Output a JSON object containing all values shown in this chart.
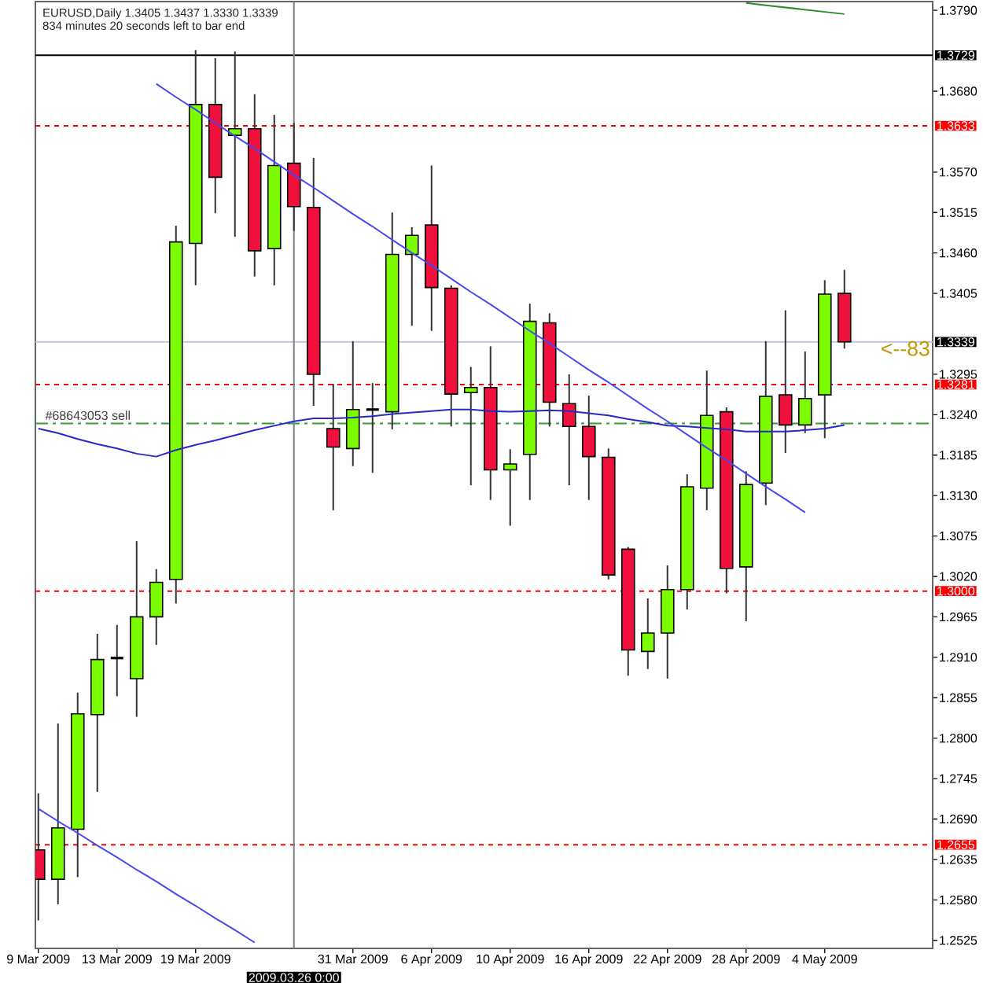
{
  "chart_data": {
    "type": "candlestick",
    "title": "EURUSD,Daily 1.3405 1.3437 1.3330 1.3339",
    "subtitle": "834 minutes 20 seconds left to bar end",
    "categories": [
      "9 Mar 2009",
      null,
      null,
      null,
      "13 Mar 2009",
      null,
      null,
      null,
      "19 Mar 2009",
      null,
      null,
      null,
      null,
      "2009.03.26 0:00",
      null,
      null,
      "31 Mar 2009",
      null,
      null,
      null,
      "6 Apr 2009",
      null,
      null,
      null,
      "10 Apr 2009",
      null,
      null,
      null,
      "16 Apr 2009",
      null,
      null,
      null,
      "22 Apr 2009",
      null,
      null,
      null,
      "28 Apr 2009",
      null,
      null,
      null,
      "4 May 2009",
      null
    ],
    "ohlc": [
      [
        1.2648,
        1.2725,
        1.2552,
        1.2608
      ],
      [
        1.2608,
        1.282,
        1.2574,
        1.2678
      ],
      [
        1.2676,
        1.2862,
        1.2611,
        1.2833
      ],
      [
        1.2832,
        1.2942,
        1.2727,
        1.2907
      ],
      [
        1.2909,
        1.2954,
        1.2857,
        1.2909
      ],
      [
        1.2881,
        1.3068,
        1.2829,
        1.2965
      ],
      [
        1.2965,
        1.303,
        1.2927,
        1.3012
      ],
      [
        1.3016,
        1.3497,
        1.2983,
        1.3475
      ],
      [
        1.3473,
        1.3736,
        1.3416,
        1.3662
      ],
      [
        1.3662,
        1.3725,
        1.3514,
        1.3563
      ],
      [
        1.362,
        1.3734,
        1.3482,
        1.3629
      ],
      [
        1.3629,
        1.3676,
        1.3428,
        1.3463
      ],
      [
        1.3466,
        1.3648,
        1.3416,
        1.3579
      ],
      [
        1.3582,
        1.3637,
        1.349,
        1.3523
      ],
      [
        1.3522,
        1.3589,
        1.3252,
        1.3295
      ],
      [
        1.3221,
        1.3282,
        1.311,
        1.3196
      ],
      [
        1.3194,
        1.334,
        1.317,
        1.3247
      ],
      [
        1.3247,
        1.3283,
        1.3161,
        1.3247
      ],
      [
        1.3244,
        1.3515,
        1.322,
        1.3458
      ],
      [
        1.3458,
        1.3495,
        1.3361,
        1.3484
      ],
      [
        1.3498,
        1.3579,
        1.3354,
        1.3413
      ],
      [
        1.3412,
        1.3416,
        1.3224,
        1.3268
      ],
      [
        1.327,
        1.3305,
        1.3144,
        1.3277
      ],
      [
        1.3277,
        1.3333,
        1.3124,
        1.3165
      ],
      [
        1.3165,
        1.3193,
        1.3089,
        1.3173
      ],
      [
        1.3186,
        1.3391,
        1.3124,
        1.3367
      ],
      [
        1.3365,
        1.3378,
        1.3224,
        1.3257
      ],
      [
        1.3255,
        1.3295,
        1.3144,
        1.3224
      ],
      [
        1.3224,
        1.3266,
        1.3124,
        1.3183
      ],
      [
        1.3182,
        1.3194,
        1.3016,
        1.3022
      ],
      [
        1.3057,
        1.306,
        1.2885,
        1.292
      ],
      [
        1.2918,
        1.299,
        1.2894,
        1.2943
      ],
      [
        1.2943,
        1.3035,
        1.2881,
        1.3002
      ],
      [
        1.3002,
        1.3159,
        1.2975,
        1.3142
      ],
      [
        1.314,
        1.33,
        1.311,
        1.3239
      ],
      [
        1.3244,
        1.325,
        1.2997,
        1.3031
      ],
      [
        1.3033,
        1.3163,
        1.2959,
        1.3145
      ],
      [
        1.3147,
        1.334,
        1.3117,
        1.3265
      ],
      [
        1.3267,
        1.3382,
        1.3188,
        1.3226
      ],
      [
        1.3226,
        1.3326,
        1.3215,
        1.3262
      ],
      [
        1.3267,
        1.3423,
        1.3208,
        1.3404
      ],
      [
        1.3405,
        1.3437,
        1.333,
        1.3339
      ]
    ],
    "colors": [
      "#f0103c",
      "#7cfc00",
      "#7cfc00",
      "#7cfc00",
      "#000000",
      "#7cfc00",
      "#7cfc00",
      "#7cfc00",
      "#7cfc00",
      "#f0103c",
      "#7cfc00",
      "#f0103c",
      "#7cfc00",
      "#f0103c",
      "#f0103c",
      "#f0103c",
      "#7cfc00",
      "#000000",
      "#7cfc00",
      "#7cfc00",
      "#f0103c",
      "#f0103c",
      "#7cfc00",
      "#f0103c",
      "#7cfc00",
      "#7cfc00",
      "#f0103c",
      "#f0103c",
      "#f0103c",
      "#f0103c",
      "#f0103c",
      "#7cfc00",
      "#7cfc00",
      "#7cfc00",
      "#7cfc00",
      "#f0103c",
      "#7cfc00",
      "#7cfc00",
      "#f0103c",
      "#7cfc00",
      "#7cfc00",
      "#f0103c"
    ],
    "series": [
      {
        "type": "line",
        "color": "#2828c8",
        "values": [
          1.3221,
          1.3215,
          1.3207,
          1.32,
          1.3194,
          1.3187,
          1.3183,
          1.3192,
          1.3199,
          1.3205,
          1.3212,
          1.3219,
          1.3225,
          1.3231,
          1.3235,
          1.3235,
          1.3236,
          1.3238,
          1.3241,
          1.3243,
          1.3245,
          1.3247,
          1.3247,
          1.3245,
          1.3244,
          1.3245,
          1.3246,
          1.3245,
          1.3242,
          1.3239,
          1.3234,
          1.323,
          1.3225,
          1.3224,
          1.3222,
          1.322,
          1.3217,
          1.3217,
          1.3217,
          1.3219,
          1.3221,
          1.3226
        ]
      },
      {
        "type": "line",
        "color": "#2e8b2e",
        "values": [
          null,
          null,
          null,
          null,
          null,
          null,
          null,
          null,
          null,
          null,
          null,
          null,
          null,
          null,
          null,
          null,
          null,
          null,
          null,
          null,
          null,
          null,
          null,
          null,
          null,
          null,
          null,
          null,
          null,
          null,
          null,
          null,
          null,
          null,
          null,
          null,
          1.38,
          1.3797,
          1.3794,
          1.3791,
          1.3788,
          1.3785
        ]
      },
      {
        "type": "line",
        "color": "#4848f0",
        "values": [
          null,
          null,
          null,
          null,
          null,
          null,
          1.369,
          1.3672,
          1.3655,
          1.3637,
          1.3619,
          1.3602,
          1.3584,
          1.3566,
          1.3549,
          1.3531,
          1.3513,
          1.3496,
          1.3478,
          1.346,
          1.3443,
          1.3425,
          1.3407,
          1.339,
          1.3372,
          1.3354,
          1.3337,
          1.3319,
          1.3301,
          1.3284,
          1.3266,
          1.3248,
          1.3231,
          1.3213,
          1.3195,
          1.3178,
          1.316,
          1.3142,
          1.3125,
          1.3107,
          null,
          null
        ]
      },
      {
        "type": "line",
        "color": "#4848f0",
        "values": [
          1.2704,
          1.2687,
          1.2671,
          1.2654,
          1.2638,
          1.2621,
          1.2605,
          1.2588,
          1.2572,
          1.2555,
          1.2539,
          1.2522,
          null,
          null,
          null,
          null,
          null,
          null,
          null,
          null,
          null,
          null,
          null,
          null,
          null,
          null,
          null,
          null,
          null,
          null,
          null,
          null,
          null,
          null,
          null,
          null,
          null,
          null,
          null,
          null,
          null,
          null
        ]
      }
    ],
    "ylim": [
      1.2514,
      1.3802
    ],
    "yticks": [
      1.2525,
      {
        "value": 1.258,
        "label": "1.2580"
      },
      1.2635,
      {
        "value": 1.269,
        "label": "1.2690"
      },
      1.2745,
      {
        "value": 1.28,
        "label": "1.2800"
      },
      1.2855,
      {
        "value": 1.291,
        "label": "1.2910"
      },
      1.2965,
      {
        "value": 1.302,
        "label": "1.3020"
      },
      1.3075,
      {
        "value": 1.313,
        "label": "1.3130"
      },
      1.3185,
      {
        "value": 1.324,
        "label": "1.3240"
      },
      1.3295,
      1.3405,
      {
        "value": 1.346,
        "label": "1.3460"
      },
      1.3515,
      {
        "value": 1.357,
        "label": "1.3570"
      },
      {
        "value": 1.368,
        "label": "1.3680"
      },
      {
        "value": 1.379,
        "label": "1.3790"
      }
    ],
    "ref_lines": [
      {
        "axis": "y",
        "value": 1.3729,
        "label": "1.3729",
        "color": "#000000",
        "line_style": "solid"
      },
      {
        "axis": "y",
        "value": 1.3633,
        "label": "1.3633",
        "color": "#ff0000",
        "line_style": "dotted"
      },
      {
        "axis": "y",
        "value": 1.3339,
        "label": "1.3339",
        "color": "#c0c0e8",
        "line_style": "solid"
      },
      {
        "axis": "y",
        "value": 1.3281,
        "label": "1.3281",
        "color": "#ff0000",
        "line_style": "dotted"
      },
      {
        "axis": "y",
        "value": 1.3,
        "label": "1.3000",
        "color": "#ff0000",
        "line_style": "dotted"
      },
      {
        "axis": "y",
        "value": 1.2655,
        "label": "1.2655",
        "color": "#ff0000",
        "line_style": "dotted"
      },
      {
        "axis": "y",
        "value": 1.3228,
        "label": "#68643053 sell",
        "color": "#339933",
        "line_style": "dashdot"
      },
      {
        "axis": "x",
        "value": "2009.03.26 0:00",
        "color": "#808080",
        "line_style": "solid"
      }
    ],
    "annotations": [
      {
        "text": "<--83",
        "y": 1.333
      }
    ]
  }
}
